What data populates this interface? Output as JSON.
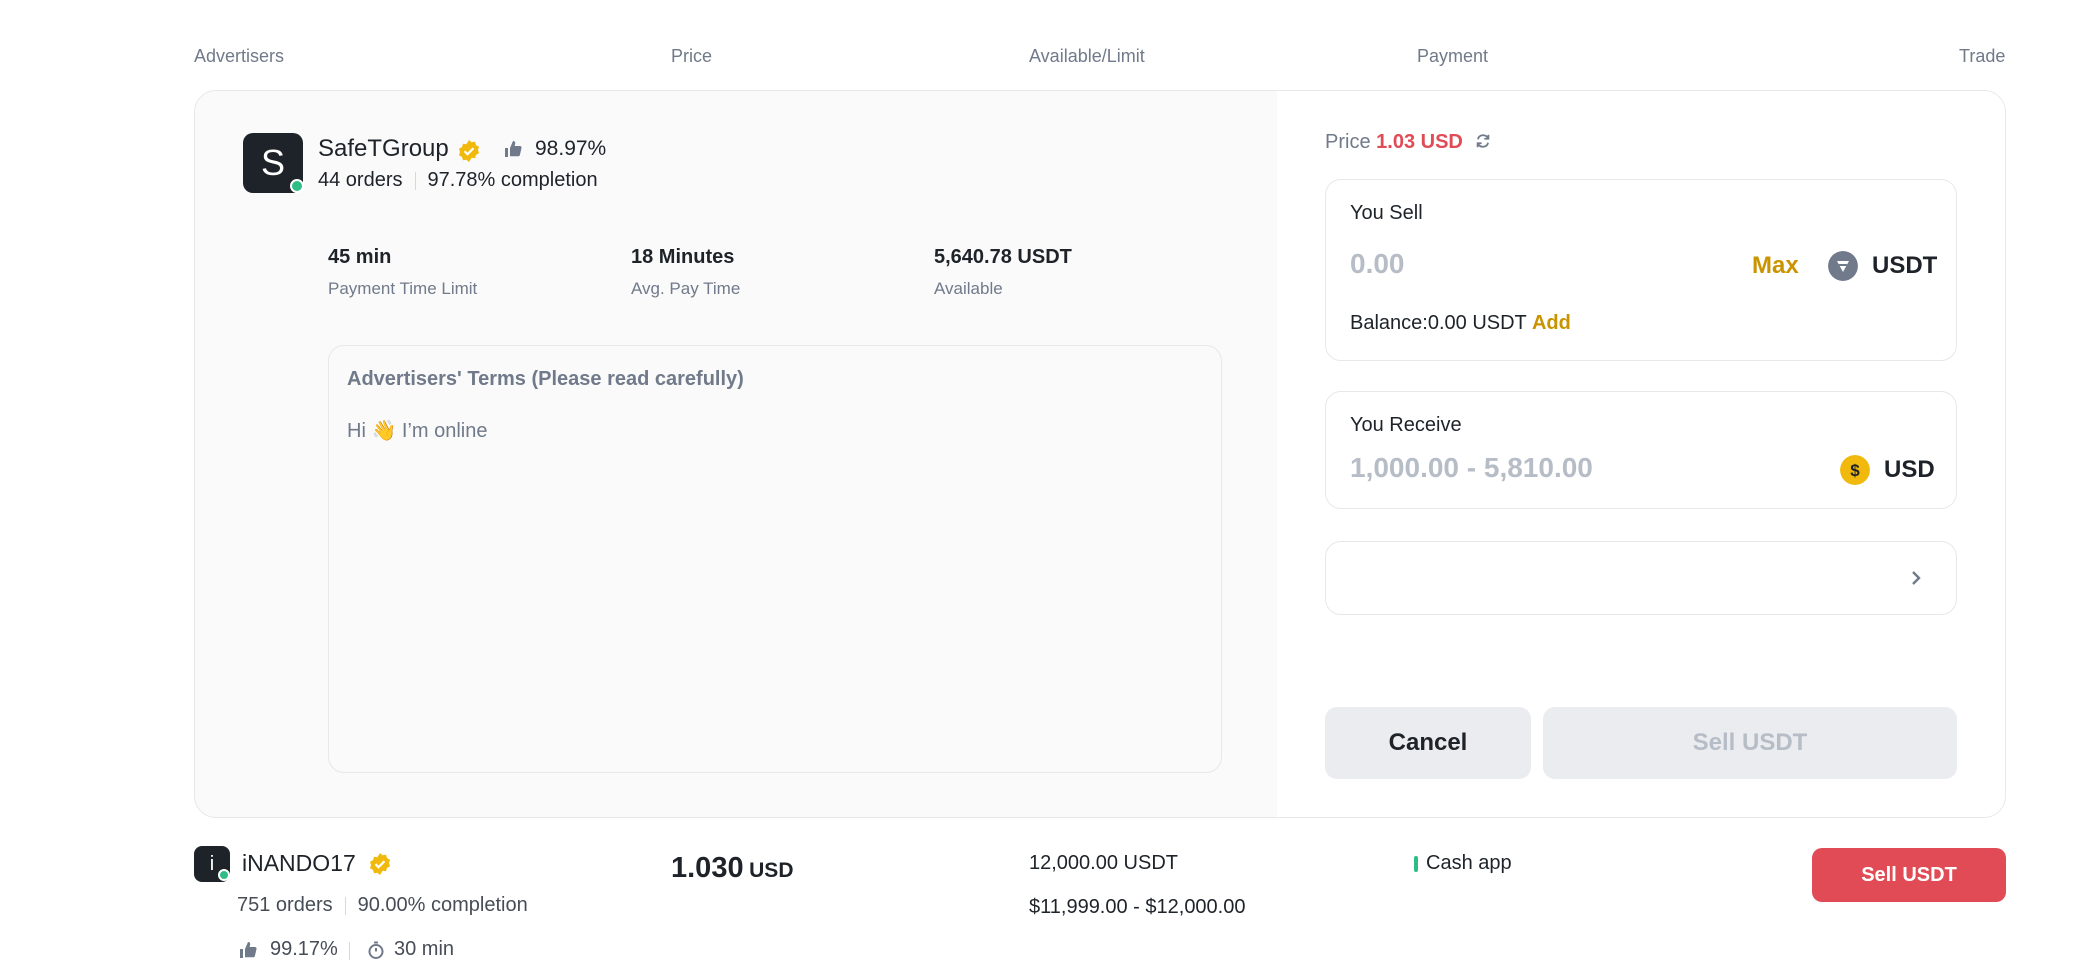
{
  "table_header": {
    "advertisers": "Advertisers",
    "price": "Price",
    "available_limit": "Available/Limit",
    "payment": "Payment",
    "trade": "Trade"
  },
  "expanded": {
    "avatar_letter": "S",
    "name": "SafeTGroup",
    "rating": "98.97%",
    "orders": "44 orders",
    "completion": "97.78% completion",
    "stats": [
      {
        "value": "45 min",
        "label": "Payment Time Limit"
      },
      {
        "value": "18 Minutes",
        "label": "Avg. Pay Time"
      },
      {
        "value": "5,640.78 USDT",
        "label": "Available"
      }
    ],
    "terms_title": "Advertisers' Terms (Please read carefully)",
    "terms_body": "Hi 👋 I’m online"
  },
  "order_panel": {
    "price_label": "Price",
    "price_value": "1.03 USD",
    "sell_label": "You Sell",
    "sell_placeholder": "0.00",
    "max_label": "Max",
    "sell_currency": "USDT",
    "balance_label": "Balance:0.00 USDT",
    "add_label": "Add",
    "receive_label": "You Receive",
    "receive_placeholder": "1,000.00 - 5,810.00",
    "receive_currency": "USD",
    "cancel_label": "Cancel",
    "sell_button_label": "Sell USDT"
  },
  "row2": {
    "avatar_letter": "i",
    "name": "iNANDO17",
    "orders": "751 orders",
    "completion": "90.00% completion",
    "rating": "99.17%",
    "time": "30 min",
    "price": "1.030",
    "price_unit": "USD",
    "available": "12,000.00 USDT",
    "limit": "$11,999.00 - $12,000.00",
    "payment": "Cash app",
    "sell_button_label": "Sell USDT"
  },
  "colors": {
    "accent_red": "#e04b56",
    "gold": "#c99400",
    "online_green": "#2ebd85"
  }
}
